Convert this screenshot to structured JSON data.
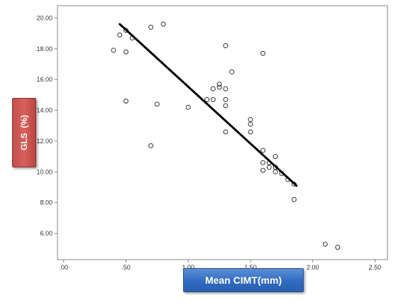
{
  "chart_data": {
    "type": "scatter",
    "title": "",
    "xlabel": "Mean CIMT(mm)",
    "ylabel": "GLS  (%)",
    "xlim": [
      -0.05,
      2.6
    ],
    "ylim": [
      4.3,
      20.8
    ],
    "x_ticks": [
      0,
      0.5,
      1.0,
      1.5,
      2.0,
      2.5
    ],
    "x_tick_labels": [
      ".00",
      ".50",
      "1.00",
      "1.50",
      "2.00",
      "2.50"
    ],
    "y_ticks": [
      6,
      8,
      10,
      12,
      14,
      16,
      18,
      20
    ],
    "y_tick_labels": [
      "6.00",
      "8.00",
      "10.00",
      "12.00",
      "14.00",
      "16.00",
      "18.00",
      "20.00"
    ],
    "grid": false,
    "legend": "none",
    "colors": {
      "points": "#333333",
      "fit_line": "#000000",
      "frame": "#888888"
    },
    "fit_line": {
      "x": [
        0.45,
        1.87
      ],
      "y": [
        19.6,
        9.1
      ]
    },
    "points": [
      {
        "x": 0.4,
        "y": 17.9
      },
      {
        "x": 0.45,
        "y": 18.9
      },
      {
        "x": 0.5,
        "y": 19.2
      },
      {
        "x": 0.5,
        "y": 17.8
      },
      {
        "x": 0.5,
        "y": 14.6
      },
      {
        "x": 0.55,
        "y": 18.7
      },
      {
        "x": 0.7,
        "y": 19.4
      },
      {
        "x": 0.7,
        "y": 11.7
      },
      {
        "x": 0.75,
        "y": 14.4
      },
      {
        "x": 0.8,
        "y": 19.6
      },
      {
        "x": 1.0,
        "y": 14.2
      },
      {
        "x": 1.15,
        "y": 14.7
      },
      {
        "x": 1.2,
        "y": 14.7
      },
      {
        "x": 1.2,
        "y": 15.4
      },
      {
        "x": 1.25,
        "y": 15.5
      },
      {
        "x": 1.25,
        "y": 15.7
      },
      {
        "x": 1.3,
        "y": 15.4
      },
      {
        "x": 1.3,
        "y": 14.7
      },
      {
        "x": 1.3,
        "y": 14.3
      },
      {
        "x": 1.3,
        "y": 12.6
      },
      {
        "x": 1.3,
        "y": 18.2
      },
      {
        "x": 1.35,
        "y": 16.5
      },
      {
        "x": 1.5,
        "y": 13.4
      },
      {
        "x": 1.5,
        "y": 13.1
      },
      {
        "x": 1.5,
        "y": 12.6
      },
      {
        "x": 1.6,
        "y": 17.7
      },
      {
        "x": 1.6,
        "y": 11.4
      },
      {
        "x": 1.6,
        "y": 10.6
      },
      {
        "x": 1.6,
        "y": 10.1
      },
      {
        "x": 1.65,
        "y": 10.6
      },
      {
        "x": 1.65,
        "y": 10.3
      },
      {
        "x": 1.7,
        "y": 11.0
      },
      {
        "x": 1.7,
        "y": 10.3
      },
      {
        "x": 1.7,
        "y": 10.0
      },
      {
        "x": 1.75,
        "y": 9.9
      },
      {
        "x": 1.8,
        "y": 9.5
      },
      {
        "x": 1.85,
        "y": 9.2
      },
      {
        "x": 1.85,
        "y": 8.2
      },
      {
        "x": 2.1,
        "y": 5.3
      },
      {
        "x": 2.2,
        "y": 5.1
      }
    ]
  }
}
